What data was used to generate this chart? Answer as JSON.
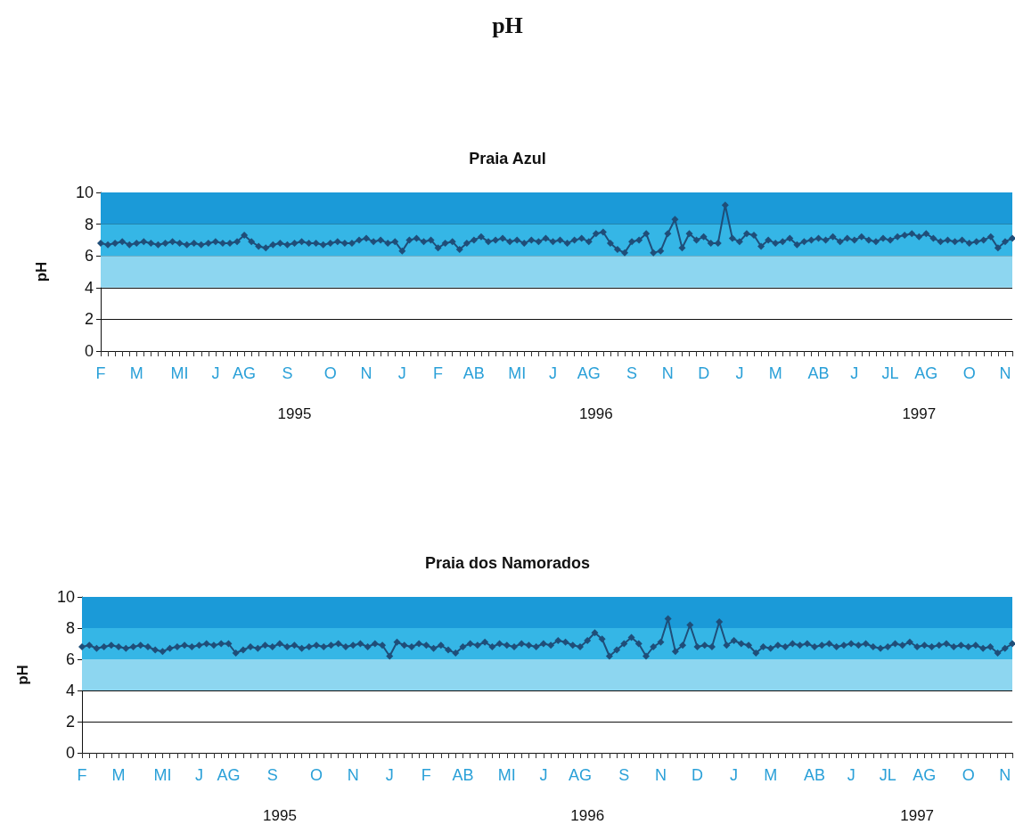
{
  "chart_data": [
    {
      "type": "other",
      "title": "pH"
    },
    {
      "type": "line",
      "title": "Praia Azul",
      "ylabel": "pH",
      "categories": [
        "F",
        null,
        null,
        null,
        null,
        "M",
        null,
        null,
        null,
        null,
        null,
        "MI",
        null,
        null,
        null,
        null,
        "J",
        null,
        null,
        null,
        "AG",
        null,
        null,
        null,
        null,
        null,
        "S",
        null,
        null,
        null,
        null,
        null,
        "O",
        null,
        null,
        null,
        null,
        "N",
        null,
        null,
        null,
        null,
        "J",
        null,
        null,
        null,
        null,
        "F",
        null,
        null,
        null,
        null,
        "AB",
        null,
        null,
        null,
        null,
        null,
        "MI",
        null,
        null,
        null,
        null,
        "J",
        null,
        null,
        null,
        null,
        "AG",
        null,
        null,
        null,
        null,
        null,
        "S",
        null,
        null,
        null,
        null,
        "N",
        null,
        null,
        null,
        null,
        "D",
        null,
        null,
        null,
        null,
        "J",
        null,
        null,
        null,
        null,
        "M",
        null,
        null,
        null,
        null,
        null,
        "AB",
        null,
        null,
        null,
        null,
        "J",
        null,
        null,
        null,
        null,
        "JL",
        null,
        null,
        null,
        null,
        "AG",
        null,
        null,
        null,
        null,
        null,
        "O",
        null,
        null,
        null,
        null,
        "N",
        null
      ],
      "series": [
        {
          "color": "#1f4e79",
          "values": [
            6.8,
            6.7,
            6.8,
            6.9,
            6.7,
            6.8,
            6.9,
            6.8,
            6.7,
            6.8,
            6.9,
            6.8,
            6.7,
            6.8,
            6.7,
            6.8,
            6.9,
            6.8,
            6.8,
            6.9,
            7.3,
            6.9,
            6.6,
            6.5,
            6.7,
            6.8,
            6.7,
            6.8,
            6.9,
            6.8,
            6.8,
            6.7,
            6.8,
            6.9,
            6.8,
            6.8,
            7.0,
            7.1,
            6.9,
            7.0,
            6.8,
            6.9,
            6.3,
            7.0,
            7.1,
            6.9,
            7.0,
            6.5,
            6.8,
            6.9,
            6.4,
            6.8,
            7.0,
            7.2,
            6.9,
            7.0,
            7.1,
            6.9,
            7.0,
            6.8,
            7.0,
            6.9,
            7.1,
            6.9,
            7.0,
            6.8,
            7.0,
            7.1,
            6.9,
            7.4,
            7.5,
            6.8,
            6.4,
            6.2,
            6.9,
            7.0,
            7.4,
            6.2,
            6.3,
            7.4,
            8.3,
            6.5,
            7.4,
            7.0,
            7.2,
            6.8,
            6.8,
            9.2,
            7.1,
            6.9,
            7.4,
            7.3,
            6.6,
            7.0,
            6.8,
            6.9,
            7.1,
            6.7,
            6.9,
            7.0,
            7.1,
            7.0,
            7.2,
            6.9,
            7.1,
            7.0,
            7.2,
            7.0,
            6.9,
            7.1,
            7.0,
            7.2,
            7.3,
            7.4,
            7.2,
            7.4,
            7.1,
            6.9,
            7.0,
            6.9,
            7.0,
            6.8,
            6.9,
            7.0,
            7.2,
            6.5,
            6.9,
            7.1
          ]
        }
      ],
      "ylim": [
        0,
        10
      ],
      "yticks": [
        0,
        2,
        4,
        6,
        8,
        10
      ],
      "grid": "y",
      "marker": "diamond",
      "line_style": "solid",
      "bands": [
        {
          "axis": "y",
          "from": 8,
          "to": 10,
          "color": "#1b9ad8"
        },
        {
          "axis": "y",
          "from": 6,
          "to": 8,
          "color": "#35b6e6"
        },
        {
          "axis": "y",
          "from": 4,
          "to": 6,
          "color": "#8dd6f0"
        }
      ],
      "annotations": [
        "1995",
        "1996",
        "1997"
      ]
    },
    {
      "type": "line",
      "title": "Praia dos Namorados",
      "ylabel": "pH",
      "categories": [
        "F",
        null,
        null,
        null,
        null,
        "M",
        null,
        null,
        null,
        null,
        null,
        "MI",
        null,
        null,
        null,
        null,
        "J",
        null,
        null,
        null,
        "AG",
        null,
        null,
        null,
        null,
        null,
        "S",
        null,
        null,
        null,
        null,
        null,
        "O",
        null,
        null,
        null,
        null,
        "N",
        null,
        null,
        null,
        null,
        "J",
        null,
        null,
        null,
        null,
        "F",
        null,
        null,
        null,
        null,
        "AB",
        null,
        null,
        null,
        null,
        null,
        "MI",
        null,
        null,
        null,
        null,
        "J",
        null,
        null,
        null,
        null,
        "AG",
        null,
        null,
        null,
        null,
        null,
        "S",
        null,
        null,
        null,
        null,
        "N",
        null,
        null,
        null,
        null,
        "D",
        null,
        null,
        null,
        null,
        "J",
        null,
        null,
        null,
        null,
        "M",
        null,
        null,
        null,
        null,
        null,
        "AB",
        null,
        null,
        null,
        null,
        "J",
        null,
        null,
        null,
        null,
        "JL",
        null,
        null,
        null,
        null,
        "AG",
        null,
        null,
        null,
        null,
        null,
        "O",
        null,
        null,
        null,
        null,
        "N",
        null
      ],
      "series": [
        {
          "color": "#1f4e79",
          "values": [
            6.8,
            6.9,
            6.7,
            6.8,
            6.9,
            6.8,
            6.7,
            6.8,
            6.9,
            6.8,
            6.6,
            6.5,
            6.7,
            6.8,
            6.9,
            6.8,
            6.9,
            7.0,
            6.9,
            7.0,
            7.0,
            6.4,
            6.6,
            6.8,
            6.7,
            6.9,
            6.8,
            7.0,
            6.8,
            6.9,
            6.7,
            6.8,
            6.9,
            6.8,
            6.9,
            7.0,
            6.8,
            6.9,
            7.0,
            6.8,
            7.0,
            6.9,
            6.2,
            7.1,
            6.9,
            6.8,
            7.0,
            6.9,
            6.7,
            6.9,
            6.6,
            6.4,
            6.8,
            7.0,
            6.9,
            7.1,
            6.8,
            7.0,
            6.9,
            6.8,
            7.0,
            6.9,
            6.8,
            7.0,
            6.9,
            7.2,
            7.1,
            6.9,
            6.8,
            7.2,
            7.7,
            7.3,
            6.2,
            6.6,
            7.0,
            7.4,
            7.0,
            6.2,
            6.8,
            7.1,
            8.6,
            6.5,
            6.9,
            8.2,
            6.8,
            6.9,
            6.8,
            8.4,
            6.9,
            7.2,
            7.0,
            6.9,
            6.4,
            6.8,
            6.7,
            6.9,
            6.8,
            7.0,
            6.9,
            7.0,
            6.8,
            6.9,
            7.0,
            6.8,
            6.9,
            7.0,
            6.9,
            7.0,
            6.8,
            6.7,
            6.8,
            7.0,
            6.9,
            7.1,
            6.8,
            6.9,
            6.8,
            6.9,
            7.0,
            6.8,
            6.9,
            6.8,
            6.9,
            6.7,
            6.8,
            6.4,
            6.7,
            7.0
          ]
        }
      ],
      "ylim": [
        0,
        10
      ],
      "yticks": [
        0,
        2,
        4,
        6,
        8,
        10
      ],
      "grid": "y",
      "marker": "diamond",
      "line_style": "solid",
      "bands": [
        {
          "axis": "y",
          "from": 8,
          "to": 10,
          "color": "#1b9ad8"
        },
        {
          "axis": "y",
          "from": 6,
          "to": 8,
          "color": "#35b6e6"
        },
        {
          "axis": "y",
          "from": 4,
          "to": 6,
          "color": "#8dd6f0"
        }
      ],
      "annotations": [
        "1995",
        "1996",
        "1997"
      ]
    }
  ]
}
